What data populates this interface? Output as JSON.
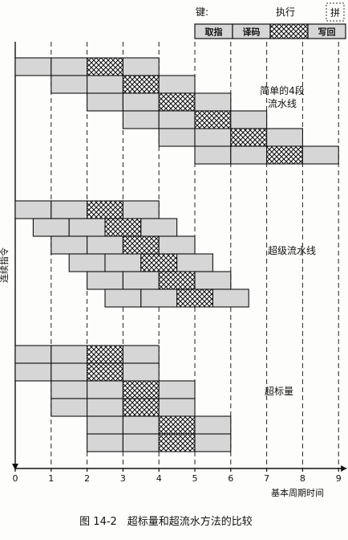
{
  "legend": {
    "key_label": "键:",
    "exec_label": "执行",
    "corner_mark": "拼",
    "stages": [
      {
        "key": "fetch",
        "label": "取指"
      },
      {
        "key": "decode",
        "label": "译码"
      },
      {
        "key": "execute",
        "label": ""
      },
      {
        "key": "writeback",
        "label": "写回"
      }
    ]
  },
  "axes": {
    "y_label": "连续指令",
    "x_label": "基本周期时间",
    "x_ticks": [
      "0",
      "1",
      "2",
      "3",
      "4",
      "5",
      "6",
      "7",
      "8",
      "9"
    ]
  },
  "sections": [
    {
      "label_lines": [
        "简单的4段",
        "流水线"
      ],
      "instructions": [
        {
          "start": 0,
          "width": 1
        },
        {
          "start": 1,
          "width": 1
        },
        {
          "start": 2,
          "width": 1
        },
        {
          "start": 3,
          "width": 1
        },
        {
          "start": 4,
          "width": 1
        },
        {
          "start": 5,
          "width": 1
        }
      ]
    },
    {
      "label_lines": [
        "超级流水线"
      ],
      "instructions": [
        {
          "start": 0,
          "width": 1
        },
        {
          "start": 0.5,
          "width": 1
        },
        {
          "start": 1,
          "width": 1
        },
        {
          "start": 1.5,
          "width": 1
        },
        {
          "start": 2,
          "width": 1
        },
        {
          "start": 2.5,
          "width": 1
        }
      ]
    },
    {
      "label_lines": [
        "超标量"
      ],
      "instructions": [
        {
          "start": 0,
          "width": 1
        },
        {
          "start": 0,
          "width": 1
        },
        {
          "start": 1,
          "width": 1
        },
        {
          "start": 1,
          "width": 1
        },
        {
          "start": 2,
          "width": 1
        },
        {
          "start": 2,
          "width": 1
        }
      ]
    }
  ],
  "caption": "图 14-2　超标量和超流水方法的比较",
  "colors": {
    "stage_fill": "#d6d6d6",
    "stroke": "#111111",
    "grid": "#222222"
  }
}
